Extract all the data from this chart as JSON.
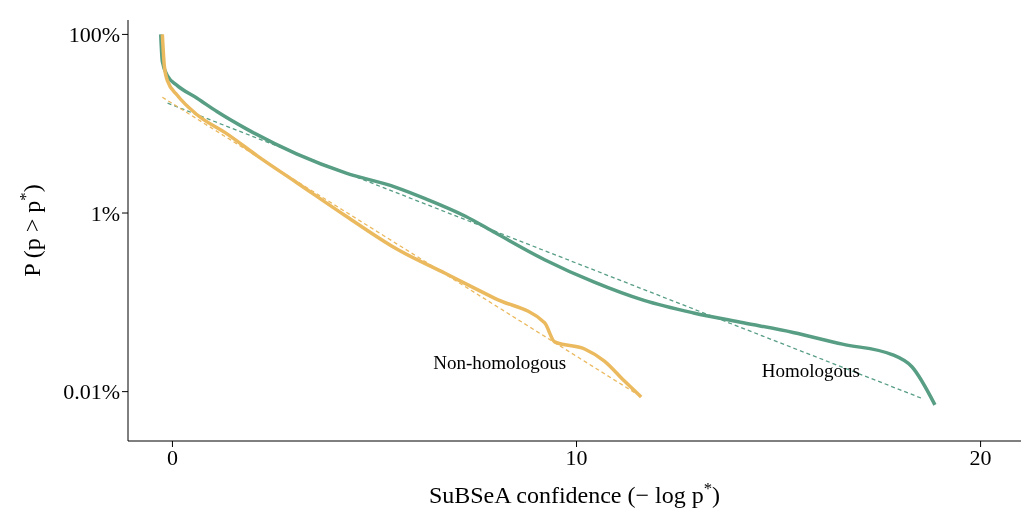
{
  "chart_data": {
    "type": "line",
    "xlabel": "SuBSeA confidence (− log p$^{*}$)",
    "ylabel": "P (p > p$^{*}$)",
    "log": "y",
    "grid": false,
    "marker": "none",
    "xlim": [
      -1.1,
      21
    ],
    "xticks": [
      0,
      10,
      20
    ],
    "ylim": [
      0.0028,
      145
    ],
    "yticks": [
      {
        "value": 100,
        "label": "100%"
      },
      {
        "value": 1,
        "label": "1%"
      },
      {
        "value": 0.01,
        "label": "0.01%"
      }
    ],
    "series": [
      {
        "name": "Homologous",
        "color": "#579e84",
        "line_style": "solid",
        "x": [
          -0.29,
          -0.25,
          -0.12,
          0.12,
          0.61,
          1.11,
          1.84,
          3.07,
          4.3,
          5.53,
          6.27,
          7.25,
          7.99,
          9.21,
          10.44,
          11.67,
          12.9,
          14.13,
          15.36,
          16.58,
          17.81,
          18.3,
          18.87
        ],
        "values": [
          100,
          49.8,
          34.2,
          26.7,
          19.3,
          13.6,
          8.7,
          4.6,
          2.8,
          1.94,
          1.44,
          0.92,
          0.6,
          0.3,
          0.168,
          0.105,
          0.076,
          0.059,
          0.046,
          0.034,
          0.026,
          0.019,
          0.0071
        ]
      },
      {
        "color": "#579e84",
        "line_style": "dashed",
        "x": [
          -0.12,
          18.55
        ],
        "values": [
          17,
          0.0084
        ]
      },
      {
        "name": "Non-homologous",
        "color": "#ebb95e",
        "line_style": "solid",
        "x": [
          -0.25,
          -0.2,
          -0.12,
          0.12,
          0.61,
          1.35,
          2.09,
          3.07,
          4.3,
          5.53,
          6.76,
          7.99,
          9.21,
          9.46,
          10.2,
          10.69,
          11.18,
          11.6
        ],
        "values": [
          100,
          44,
          30,
          20.8,
          12.6,
          7.7,
          4.4,
          2.2,
          0.92,
          0.4,
          0.21,
          0.11,
          0.059,
          0.036,
          0.03,
          0.022,
          0.0132,
          0.0087
        ]
      },
      {
        "color": "#ebb95e",
        "line_style": "dashed",
        "x": [
          -0.25,
          11.43
        ],
        "values": [
          19.8,
          0.0098
        ]
      }
    ]
  }
}
